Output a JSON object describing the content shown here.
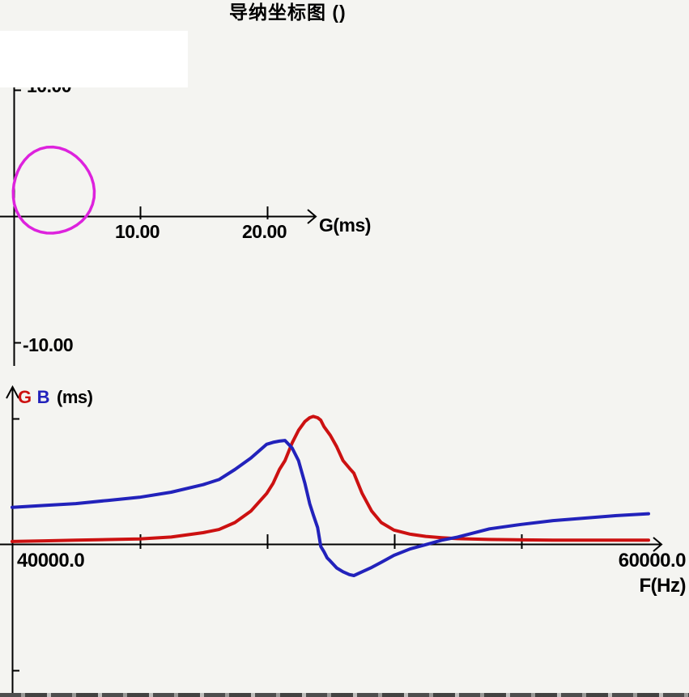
{
  "title": "导纳坐标图 ()",
  "colors": {
    "background": "#f4f4f1",
    "white_patch": "#ffffff",
    "axis": "#000000",
    "text": "#000000",
    "admittance_circle": "#dd22dd",
    "g_curve": "#cc1111",
    "b_curve": "#2222bb"
  },
  "chart_data": [
    {
      "id": "admittance-circle-plot",
      "type": "line",
      "title": "导纳坐标图 ()",
      "xlabel": "G(ms)",
      "ylabel": "",
      "x_tick_labels": [
        "10.00",
        "20.00"
      ],
      "x_tick_values": [
        10,
        20
      ],
      "y_tick_labels": {
        "top": "10.00",
        "bottom": "-10.00"
      },
      "y_tick_values": [
        10,
        -10
      ],
      "xlim": [
        0,
        25
      ],
      "ylim": [
        -11.5,
        10.5
      ],
      "grid": false,
      "legend": "none",
      "note": "admittance locus circle in G-B plane; top y tick label partially hidden by white patch",
      "series": [
        {
          "name": "admittance-locus",
          "color": "#dd22dd",
          "shape": "closed-circle",
          "center": {
            "G_ms": 3.1,
            "B_ms": 2.0
          },
          "radius": {
            "G_ms": 3.2,
            "B_ms": 3.4
          }
        }
      ]
    },
    {
      "id": "frequency-sweep-plot",
      "type": "line",
      "title": "",
      "xlabel": "F(Hz)",
      "ylabel": "G B (ms)",
      "ylabel_parts": {
        "g": "G",
        "b": "B",
        "unit": "(ms)"
      },
      "x_tick_labels_shown": [
        "40000.0",
        "60000.0"
      ],
      "x_ticks_unlabeled": [
        44000,
        48000,
        52000,
        56000
      ],
      "y_ticks_unlabeled": [
        10,
        -10
      ],
      "xlim": [
        40000,
        60500
      ],
      "ylim": [
        -12,
        12.5
      ],
      "grid": false,
      "legend": "inline colored ylabel",
      "x": [
        40000,
        41000,
        42000,
        43000,
        44000,
        45000,
        46000,
        46500,
        47000,
        47500,
        48000,
        48200,
        48400,
        48575,
        48800,
        49000,
        49200,
        49350,
        49465,
        49600,
        49700,
        49800,
        49900,
        50000,
        50200,
        50400,
        50600,
        50740,
        51000,
        51300,
        51600,
        52000,
        52500,
        53000,
        53500,
        54000,
        55000,
        56000,
        57000,
        58000,
        59000,
        60000
      ],
      "series": [
        {
          "name": "G",
          "color": "#cc1111",
          "values": [
            0.2,
            0.25,
            0.3,
            0.35,
            0.4,
            0.55,
            0.9,
            1.15,
            1.7,
            2.6,
            4.0,
            4.8,
            5.9,
            6.6,
            8.0,
            9.0,
            9.7,
            10.0,
            10.1,
            10.0,
            9.8,
            9.3,
            8.95,
            8.6,
            7.7,
            6.6,
            6.0,
            5.6,
            4.0,
            2.6,
            1.7,
            1.1,
            0.78,
            0.6,
            0.5,
            0.42,
            0.36,
            0.33,
            0.31,
            0.3,
            0.3,
            0.3
          ]
        },
        {
          "name": "B",
          "color": "#2222bb",
          "values": [
            2.9,
            3.05,
            3.2,
            3.45,
            3.7,
            4.1,
            4.7,
            5.1,
            5.9,
            6.8,
            7.9,
            8.05,
            8.15,
            8.2,
            7.6,
            6.6,
            4.8,
            3.2,
            2.3,
            1.3,
            -0.2,
            -0.6,
            -1.1,
            -1.35,
            -1.9,
            -2.2,
            -2.42,
            -2.5,
            -2.2,
            -1.85,
            -1.45,
            -0.9,
            -0.4,
            -0.05,
            0.3,
            0.55,
            1.2,
            1.55,
            1.85,
            2.05,
            2.25,
            2.4
          ]
        }
      ]
    }
  ]
}
